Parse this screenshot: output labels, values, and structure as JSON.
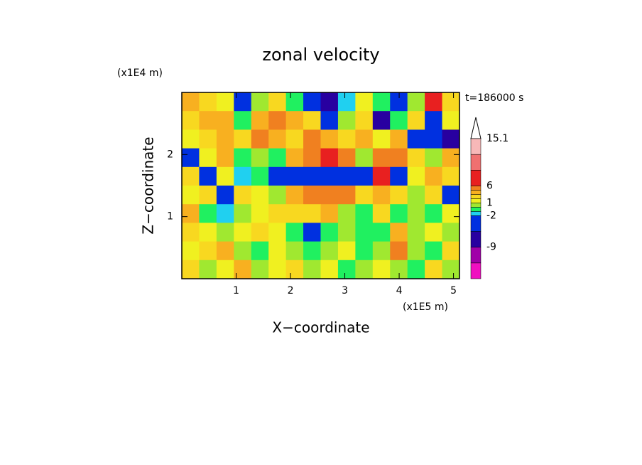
{
  "chart_data": {
    "type": "contour",
    "title": "zonal velocity",
    "x_label": "X−coordinate",
    "y_label": "Z−coordinate",
    "x_unit": "(x1E5 m)",
    "y_unit": "(x1E4 m)",
    "annotation": "t=186000 s",
    "xlim": [
      0,
      5.11
    ],
    "ylim": [
      0,
      3
    ],
    "xticks": [
      1,
      2,
      3,
      4,
      5
    ],
    "yticks": [
      1,
      2
    ],
    "levels": [
      -15,
      -12,
      -9,
      -6,
      -2,
      -1,
      0,
      1,
      2,
      3,
      4,
      6,
      9,
      12,
      15.1
    ],
    "colors": [
      "#f010c0",
      "#a000a8",
      "#2800a0",
      "#0030e0",
      "#20d0f0",
      "#20f060",
      "#a0e830",
      "#f0f020",
      "#f8d820",
      "#f8b020",
      "#f08020",
      "#e82020",
      "#f07070",
      "#f8b8b8"
    ],
    "colorbar_ticks": [
      15.1,
      6,
      1,
      -2,
      -9
    ],
    "field": [
      [
        3,
        2,
        1,
        -4,
        0,
        2,
        -1,
        -3,
        -8,
        -2,
        1,
        -1,
        -6,
        0,
        8,
        2
      ],
      [
        2,
        3,
        3,
        -1,
        3,
        4,
        3,
        2,
        -6,
        0,
        2,
        -7,
        -1,
        2,
        -6,
        1
      ],
      [
        1,
        2,
        3,
        2,
        4,
        3,
        2,
        4,
        3,
        2,
        3,
        1,
        3,
        -6,
        -4,
        -8
      ],
      [
        -4,
        1,
        3,
        -1,
        0,
        -1,
        3,
        4,
        6,
        4,
        0,
        4,
        4,
        2,
        0,
        3
      ],
      [
        2,
        -6,
        1,
        -2,
        -1,
        -4,
        -4,
        -3,
        -4,
        -6,
        -6,
        7,
        -3,
        1,
        3,
        2
      ],
      [
        1,
        2,
        -5,
        2,
        1,
        0,
        3,
        4,
        5,
        4,
        2,
        3,
        2,
        0,
        2,
        -6
      ],
      [
        3,
        -1,
        -2,
        0,
        1,
        2,
        2,
        2,
        3,
        0,
        -1,
        2,
        -1,
        0,
        -1,
        1
      ],
      [
        2,
        1,
        0,
        1,
        2,
        1,
        -1,
        -4,
        -1,
        0,
        -1,
        -1,
        3,
        0,
        1,
        0
      ],
      [
        1,
        2,
        3,
        0,
        -1,
        1,
        0,
        -1,
        0,
        1,
        -1,
        0,
        4,
        0,
        -1,
        2
      ],
      [
        2,
        0,
        1,
        3,
        0,
        1,
        2,
        0,
        1,
        -1,
        0,
        1,
        0,
        -1,
        2,
        0
      ]
    ]
  }
}
